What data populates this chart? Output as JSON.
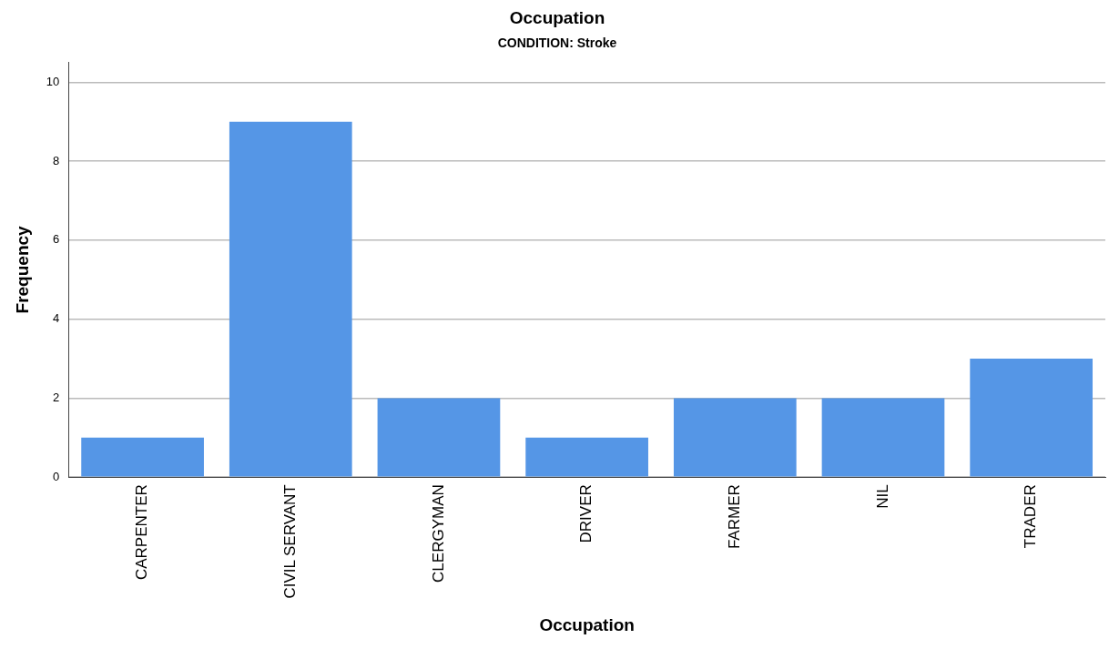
{
  "chart_data": {
    "type": "bar",
    "title": "Occupation",
    "subtitle": "CONDITION: Stroke",
    "xlabel": "Occupation",
    "ylabel": "Frequency",
    "categories": [
      "CARPENTER",
      "CIVIL SERVANT",
      "CLERGYMAN",
      "DRIVER",
      "FARMER",
      "NIL",
      "TRADER"
    ],
    "values": [
      1,
      9,
      2,
      1,
      2,
      2,
      3
    ],
    "color": "#5596e6",
    "ylim": [
      0,
      10.5
    ],
    "yticks": [
      0,
      2,
      4,
      6,
      8,
      10
    ],
    "grid": "y",
    "legend": false
  }
}
